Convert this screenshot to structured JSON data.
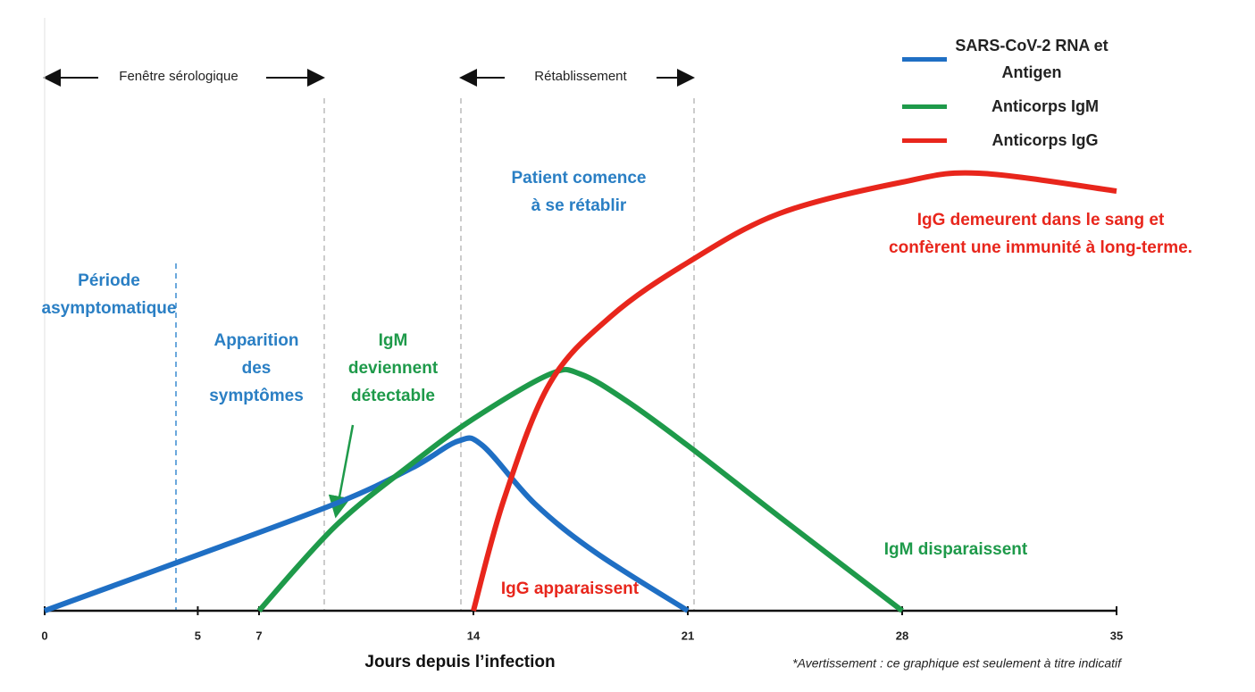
{
  "chart_data": {
    "type": "line",
    "x_label": "Jours depuis l’infection",
    "footnote": "*Avertissement : ce graphique est seulement à titre indicatif",
    "xlim": [
      0,
      35
    ],
    "xticks": [
      0,
      5,
      7,
      14,
      21,
      28,
      35
    ],
    "ylim": [
      0,
      100
    ],
    "series": [
      {
        "name": "SARS-CoV-2 RNA et Antigen",
        "color": "#1f6fc4",
        "x": [
          0,
          4.4,
          9.5,
          12,
          13.5,
          14.3,
          16,
          18,
          21
        ],
        "values": [
          0,
          11,
          24,
          32,
          38,
          37,
          24,
          13,
          0
        ]
      },
      {
        "name": "Anticorps IgM",
        "color": "#1e9a4a",
        "x": [
          7,
          9.5,
          12,
          14,
          16.5,
          17.5,
          19,
          21,
          24,
          28
        ],
        "values": [
          0,
          19,
          33,
          43,
          53,
          53,
          47,
          37,
          21,
          0
        ]
      },
      {
        "name": "Anticorps IgG",
        "color": "#e8261c",
        "x": [
          14,
          15,
          16.5,
          18.5,
          21,
          24,
          28,
          30.5,
          35
        ],
        "values": [
          0,
          25,
          51,
          66,
          78,
          89,
          96,
          98,
          94
        ]
      }
    ],
    "annotations": [
      [
        "Fenêtre sérologique"
      ],
      [
        "Rétablissement"
      ],
      [
        "Patient comence",
        "à se rétablir"
      ],
      [
        "Période",
        "asymptomatique"
      ],
      [
        "Apparition",
        "des",
        "symptômes"
      ],
      [
        "IgM",
        "deviennent",
        "détectable"
      ],
      [
        "IgG demeurent dans le sang et",
        "confèrent une immunité à long-terme."
      ],
      [
        "IgG apparaissent"
      ],
      [
        "IgM disparaissent"
      ]
    ]
  }
}
